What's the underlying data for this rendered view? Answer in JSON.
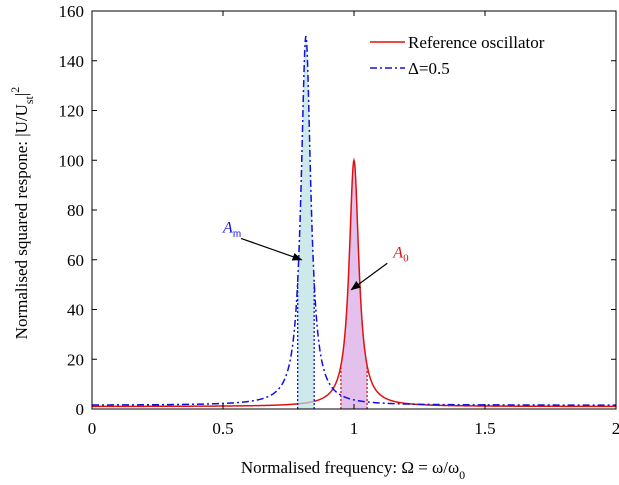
{
  "chart_data": {
    "type": "line",
    "xlabel": "Normalised frequency: Ω = ω/ω",
    "xlabel_sub": "0",
    "ylabel": "Normalised squared respone: |U/U",
    "ylabel_sub": "st",
    "ylabel_sup": "2",
    "xlim": [
      0,
      2
    ],
    "ylim": [
      0,
      160
    ],
    "x_ticks": [
      0,
      0.5,
      1,
      1.5,
      2
    ],
    "x_tick_labels": [
      "0",
      "0.5",
      "1",
      "1.5",
      "2"
    ],
    "y_ticks": [
      0,
      20,
      40,
      60,
      80,
      100,
      120,
      140,
      160
    ],
    "y_tick_labels": [
      "0",
      "20",
      "40",
      "60",
      "80",
      "100",
      "120",
      "140",
      "160"
    ],
    "grid": false,
    "legend_position": "top-right",
    "series": [
      {
        "name": "Reference oscillator",
        "color": "#e01010",
        "style": "solid",
        "peak_x": 1.0,
        "peak_y": 100,
        "baseline_y": 1.0,
        "shaded_band": [
          0.95,
          1.05
        ],
        "shade_color": "#d9a6e6"
      },
      {
        "name": "Δ=0.5",
        "color": "#1010e0",
        "style": "dashdot",
        "peak_x": 0.8165,
        "peak_y": 150,
        "baseline_y": 1.5,
        "shaded_band": [
          0.785,
          0.848
        ],
        "shade_color": "#b9dfe0"
      }
    ],
    "annotations": [
      {
        "label": "A",
        "sub": "m",
        "color": "#1010e0",
        "text_x": 0.5,
        "text_y": 71,
        "arrow_to_x": 0.8,
        "arrow_to_y": 60
      },
      {
        "label": "A",
        "sub": "0",
        "color": "#e01010",
        "text_x": 1.15,
        "text_y": 61,
        "arrow_to_x": 0.99,
        "arrow_to_y": 48
      }
    ]
  }
}
